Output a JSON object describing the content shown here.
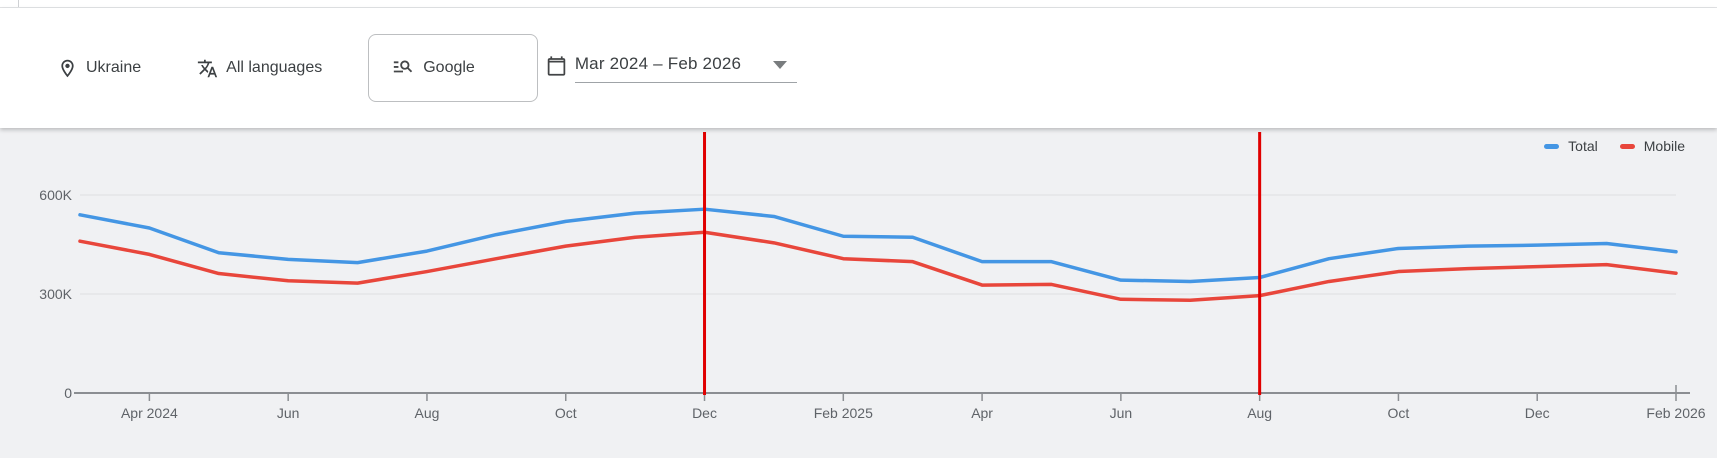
{
  "filters": {
    "location": {
      "icon": "location-pin-icon",
      "label": "Ukraine"
    },
    "language": {
      "icon": "translate-icon",
      "label": "All languages"
    },
    "search_engine": {
      "icon": "engine-search-icon",
      "label": "Google"
    },
    "date_range": {
      "icon": "calendar-icon",
      "label": "Mar 2024 – Feb 2026"
    }
  },
  "chart_data": {
    "type": "line",
    "title": "",
    "unit": "searches per month (K = thousands)",
    "x": [
      "Mar 2024",
      "Apr 2024",
      "May 2024",
      "Jun 2024",
      "Jul 2024",
      "Aug 2024",
      "Sep 2024",
      "Oct 2024",
      "Nov 2024",
      "Dec 2024",
      "Jan 2025",
      "Feb 2025",
      "Mar 2025",
      "Apr 2025",
      "May 2025",
      "Jun 2025",
      "Jul 2025",
      "Aug 2025",
      "Sep 2025",
      "Oct 2025",
      "Nov 2025",
      "Dec 2025",
      "Jan 2026",
      "Feb 2026"
    ],
    "series": [
      {
        "name": "Total",
        "color": "#4496e4",
        "values": [
          540,
          500,
          425,
          405,
          395,
          430,
          480,
          520,
          545,
          557,
          535,
          475,
          472,
          398,
          398,
          342,
          338,
          350,
          407,
          438,
          445,
          448,
          453,
          428
        ]
      },
      {
        "name": "Mobile",
        "color": "#e8463b",
        "values": [
          460,
          420,
          362,
          340,
          333,
          368,
          407,
          445,
          472,
          487,
          455,
          407,
          398,
          327,
          329,
          284,
          281,
          295,
          338,
          368,
          377,
          383,
          389,
          363
        ]
      }
    ],
    "y_ticks": [
      {
        "label": "0",
        "value": 0
      },
      {
        "label": "300K",
        "value": 300
      },
      {
        "label": "600K",
        "value": 600
      }
    ],
    "x_tick_labels": [
      {
        "month_index": 1,
        "label": "Apr 2024"
      },
      {
        "month_index": 3,
        "label": "Jun"
      },
      {
        "month_index": 5,
        "label": "Aug"
      },
      {
        "month_index": 7,
        "label": "Oct"
      },
      {
        "month_index": 9,
        "label": "Dec"
      },
      {
        "month_index": 11,
        "label": "Feb 2025"
      },
      {
        "month_index": 13,
        "label": "Apr"
      },
      {
        "month_index": 15,
        "label": "Jun"
      },
      {
        "month_index": 17,
        "label": "Aug"
      },
      {
        "month_index": 19,
        "label": "Oct"
      },
      {
        "month_index": 21,
        "label": "Dec"
      },
      {
        "month_index": 23,
        "label": "Feb 2026"
      }
    ],
    "markers": [
      {
        "month_index": 9,
        "month": "Dec 2024"
      },
      {
        "month_index": 17,
        "month": "Aug 2025"
      }
    ],
    "marker_color": "#e00000",
    "ylim": [
      0,
      600
    ],
    "grid": "horizontal",
    "legend_position": "top-right",
    "background": "#f0f1f3"
  }
}
